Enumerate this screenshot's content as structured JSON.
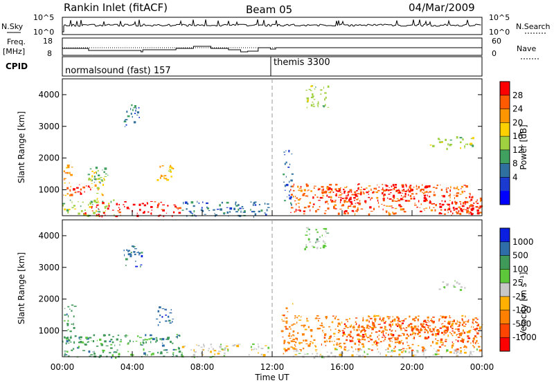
{
  "header": {
    "station": "Rankin Inlet (fitACF)",
    "beam": "Beam 05",
    "date": "04/Mar/2009"
  },
  "panels": {
    "nsky": {
      "left_label": "N.Sky",
      "right_label": "N.Search",
      "left_ticks": [
        "10^5",
        "10^0"
      ],
      "right_ticks": [
        "10^5",
        "10^0"
      ]
    },
    "freq": {
      "left_label": "Freq.",
      "left_unit": "[MHz]",
      "right_label": "Nave",
      "left_ticks": [
        "18",
        "8"
      ],
      "right_ticks": [
        "60",
        "0"
      ]
    },
    "cpid": {
      "label": "CPID",
      "segments": [
        "normalsound (fast) 157",
        "themis 3300"
      ]
    }
  },
  "colorbars": {
    "power": {
      "title": "Power [dB]",
      "labels": [
        "28",
        "24",
        "20",
        "16",
        "12",
        "8",
        "4"
      ],
      "colors": [
        "#ff0000",
        "#ff5a00",
        "#ff9600",
        "#ffd000",
        "#9fd040",
        "#3fa060",
        "#2f70a0",
        "#1a3ad0",
        "#0000ff"
      ]
    },
    "velocity": {
      "title": "Velocity [m s⁻¹]",
      "labels": [
        "1000",
        "500",
        "100",
        "25",
        "-25",
        "-100",
        "-500",
        "-1000"
      ],
      "colors": [
        "#0a1fe0",
        "#2e6da8",
        "#3f9a5a",
        "#5cc83a",
        "#c8c8c8",
        "#ffb000",
        "#ff8000",
        "#ff4500",
        "#ff0000"
      ]
    }
  },
  "chart_data": {
    "type": "heatmap",
    "xlabel": "Time UT",
    "x_ticks": [
      "00:00",
      "04:00",
      "08:00",
      "12:00",
      "16:00",
      "20:00",
      "00:00"
    ],
    "x_range_hours": [
      0,
      24
    ],
    "ylabel": "Slant Range [km]",
    "y_ticks": [
      1000,
      2000,
      3000,
      4000
    ],
    "ylim": [
      180,
      4500
    ],
    "cpid_change_hour": 12,
    "panels": [
      {
        "name": "power",
        "regions": [
          {
            "t": [
              0.0,
              0.6
            ],
            "r": [
              700,
              1900
            ],
            "c": 2
          },
          {
            "t": [
              0.3,
              1.6
            ],
            "r": [
              900,
              1300
            ],
            "c": 0
          },
          {
            "t": [
              1.6,
              2.4
            ],
            "r": [
              600,
              1600
            ],
            "c": 3
          },
          {
            "t": [
              0.0,
              3.0
            ],
            "r": [
              180,
              700
            ],
            "c": 4
          },
          {
            "t": [
              1.2,
              6.7
            ],
            "r": [
              180,
              650
            ],
            "c": 0
          },
          {
            "t": [
              1.4,
              2.6
            ],
            "r": [
              1200,
              1800
            ],
            "c": 5
          },
          {
            "t": [
              5.4,
              6.3
            ],
            "r": [
              1300,
              1800
            ],
            "c": 3
          },
          {
            "t": [
              3.5,
              4.5
            ],
            "r": [
              3000,
              3700
            ],
            "c": 6
          },
          {
            "t": [
              6.8,
              11.8
            ],
            "r": [
              180,
              650
            ],
            "c": 6
          },
          {
            "t": [
              12.6,
              13.1
            ],
            "r": [
              500,
              2300
            ],
            "c": 6
          },
          {
            "t": [
              13.0,
              24.0
            ],
            "r": [
              250,
              1200
            ],
            "c": 1
          },
          {
            "t": [
              14.5,
              17.5
            ],
            "r": [
              550,
              1100
            ],
            "c": 0
          },
          {
            "t": [
              18.0,
              21.0
            ],
            "r": [
              650,
              1150
            ],
            "c": 0
          },
          {
            "t": [
              21.5,
              23.5
            ],
            "r": [
              200,
              700
            ],
            "c": 0
          },
          {
            "t": [
              23.2,
              24.0
            ],
            "r": [
              250,
              800
            ],
            "c": 0
          },
          {
            "t": [
              13.8,
              15.2
            ],
            "r": [
              3600,
              4300
            ],
            "c": 4
          },
          {
            "t": [
              21.0,
              23.5
            ],
            "r": [
              2300,
              2700
            ],
            "c": 4
          }
        ]
      },
      {
        "name": "velocity",
        "regions": [
          {
            "t": [
              0.0,
              0.7
            ],
            "r": [
              600,
              1900
            ],
            "c": 2
          },
          {
            "t": [
              0.0,
              6.8
            ],
            "r": [
              180,
              900
            ],
            "c": 2
          },
          {
            "t": [
              5.3,
              6.3
            ],
            "r": [
              1200,
              1800
            ],
            "c": 1
          },
          {
            "t": [
              3.5,
              4.5
            ],
            "r": [
              3000,
              3700
            ],
            "c": 1
          },
          {
            "t": [
              6.8,
              11.8
            ],
            "r": [
              180,
              600
            ],
            "c": 4
          },
          {
            "t": [
              12.5,
              13.2
            ],
            "r": [
              250,
              1900
            ],
            "c": 6
          },
          {
            "t": [
              13.0,
              24.0
            ],
            "r": [
              400,
              1500
            ],
            "c": 6
          },
          {
            "t": [
              16.0,
              23.8
            ],
            "r": [
              650,
              1450
            ],
            "c": 7
          },
          {
            "t": [
              13.0,
              24.0
            ],
            "r": [
              180,
              450
            ],
            "c": 4
          },
          {
            "t": [
              13.8,
              15.2
            ],
            "r": [
              3600,
              4300
            ],
            "c": 3
          },
          {
            "t": [
              21.5,
              23.0
            ],
            "r": [
              2300,
              2600
            ],
            "c": 4
          }
        ]
      }
    ]
  }
}
